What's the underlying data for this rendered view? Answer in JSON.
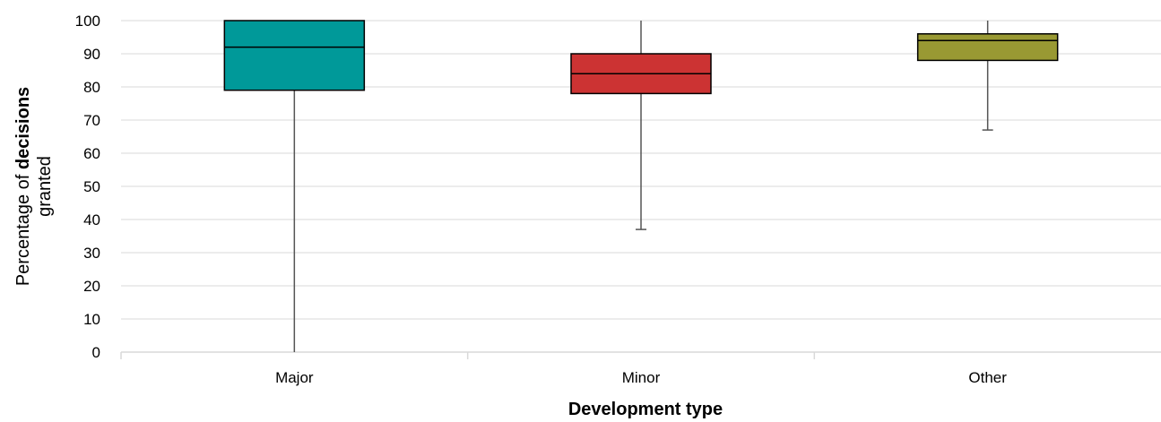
{
  "chart_data": {
    "type": "boxplot",
    "categories": [
      "Major",
      "Minor",
      "Other"
    ],
    "boxes": [
      {
        "category": "Major",
        "min": 0,
        "q1": 79,
        "median": 92,
        "q3": 100,
        "max": 100,
        "color": "#009999"
      },
      {
        "category": "Minor",
        "min": 37,
        "q1": 78,
        "median": 84,
        "q3": 90,
        "max": 100,
        "color": "#CC3333"
      },
      {
        "category": "Other",
        "min": 67,
        "q1": 88,
        "median": 94,
        "q3": 96,
        "max": 100,
        "color": "#999933"
      }
    ],
    "yticks": [
      "0",
      "10",
      "20",
      "30",
      "40",
      "50",
      "60",
      "70",
      "80",
      "90",
      "100"
    ],
    "ylim": [
      0,
      100
    ],
    "ylabel_line1_pre": "Percentage of ",
    "ylabel_line1_bold": "decisions",
    "ylabel_line2": "granted",
    "xlabel": "Development type",
    "grid": true,
    "grid_color": "#D9D9D9"
  }
}
